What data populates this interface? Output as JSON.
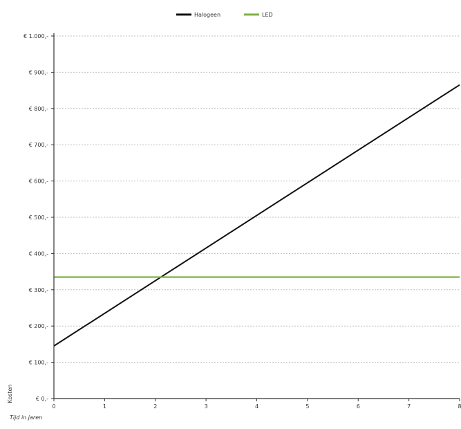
{
  "chart_data": {
    "type": "line",
    "title": "",
    "xlabel": "Tijd in jaren",
    "ylabel": "Kosten",
    "xlim": [
      0,
      8
    ],
    "ylim": [
      0,
      1000
    ],
    "x_ticks": [
      0,
      1,
      2,
      3,
      4,
      5,
      6,
      7,
      8
    ],
    "x_tick_labels": [
      "0",
      "1",
      "2",
      "3",
      "4",
      "5",
      "6",
      "7",
      "8"
    ],
    "y_ticks": [
      0,
      100,
      200,
      300,
      400,
      500,
      600,
      700,
      800,
      900,
      1000
    ],
    "y_tick_labels": [
      "€ 0,-",
      "€ 100,-",
      "€ 200,-",
      "€ 300,-",
      "€ 400,-",
      "€ 500,-",
      "€ 600,-",
      "€ 700,-",
      "€ 800,-",
      "€ 900,-",
      "€ 1.000,-"
    ],
    "grid": true,
    "legend_position": "top-center",
    "series": [
      {
        "name": "Halogeen",
        "color": "#111111",
        "x": [
          0,
          8
        ],
        "y": [
          145,
          865
        ]
      },
      {
        "name": "LED",
        "color": "#7cb342",
        "x": [
          0,
          8
        ],
        "y": [
          335,
          335
        ]
      }
    ]
  }
}
